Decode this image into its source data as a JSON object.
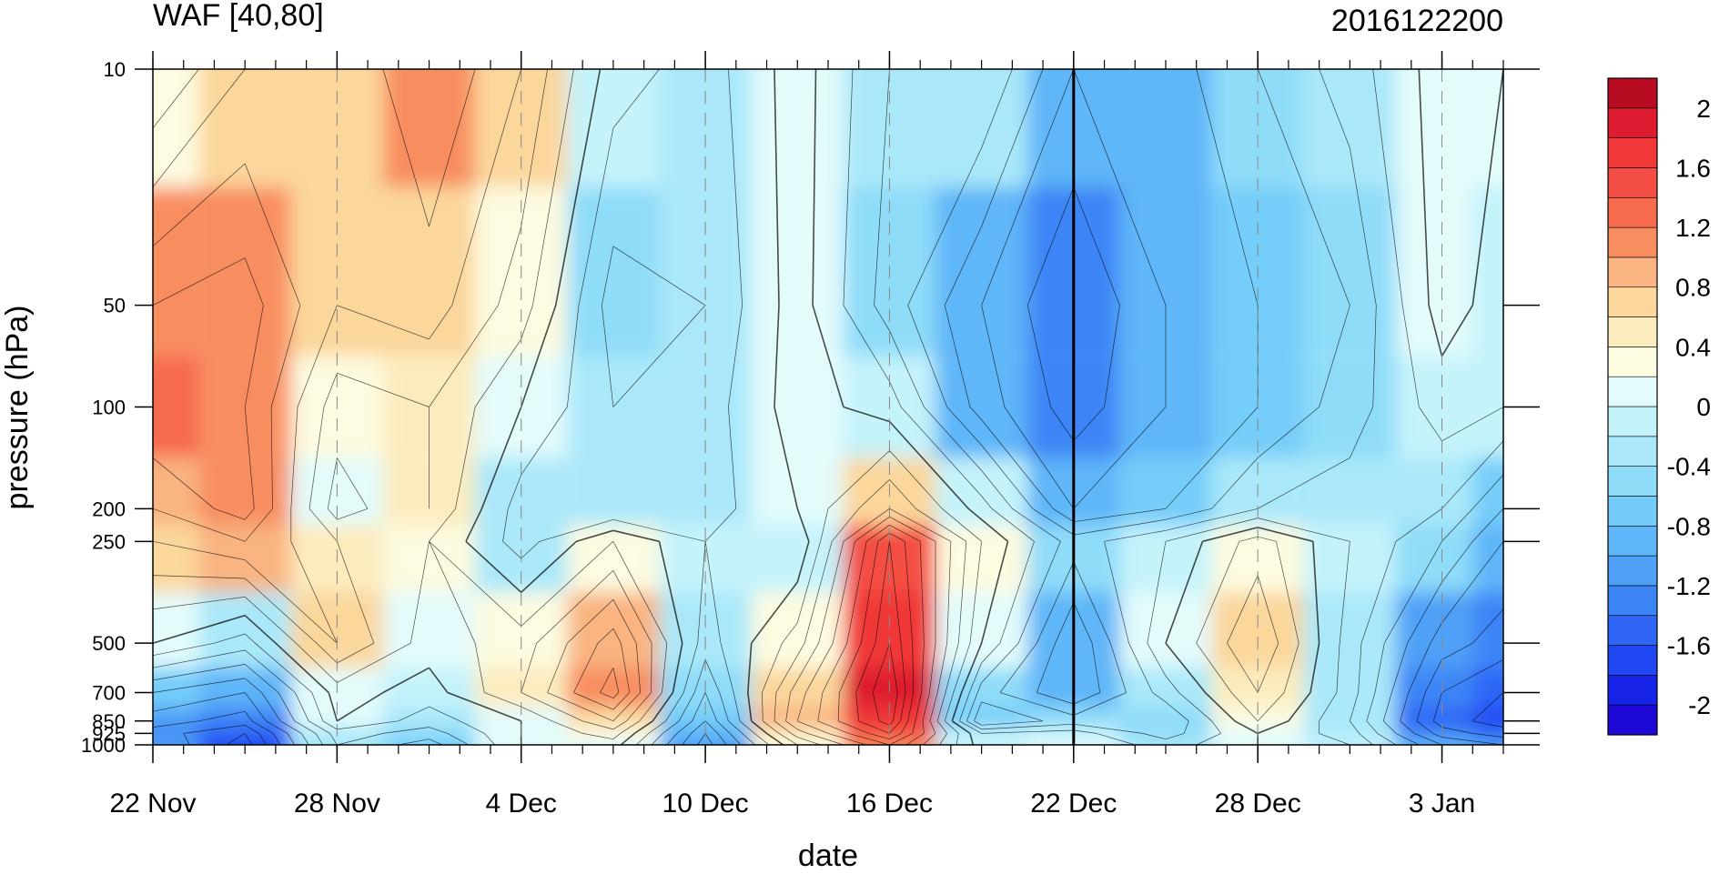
{
  "chart_data": {
    "type": "heatmap",
    "title_left": "WAF [40,80]",
    "title_right": "2016122200",
    "xlabel": "date",
    "ylabel": "pressure (hPa)",
    "x_start": "2016-11-22",
    "x_end": "2017-01-05",
    "x_ticks": [
      {
        "date": "2016-11-22",
        "label": "22 Nov"
      },
      {
        "date": "2016-11-28",
        "label": "28 Nov"
      },
      {
        "date": "2016-12-04",
        "label": "4 Dec"
      },
      {
        "date": "2016-12-10",
        "label": "10 Dec"
      },
      {
        "date": "2016-12-16",
        "label": "16 Dec"
      },
      {
        "date": "2016-12-22",
        "label": "22 Dec"
      },
      {
        "date": "2016-12-28",
        "label": "28 Dec"
      },
      {
        "date": "2017-01-03",
        "label": "3 Jan"
      }
    ],
    "y_scale": "log",
    "y_range": [
      1000,
      10
    ],
    "y_ticks": [
      {
        "value": 10,
        "label": "10"
      },
      {
        "value": 50,
        "label": "50"
      },
      {
        "value": 100,
        "label": "100"
      },
      {
        "value": 200,
        "label": "200"
      },
      {
        "value": 250,
        "label": "250"
      },
      {
        "value": 500,
        "label": "500"
      },
      {
        "value": 700,
        "label": "700"
      },
      {
        "value": 850,
        "label": "850"
      },
      {
        "value": 925,
        "label": "925"
      },
      {
        "value": 1000,
        "label": "1000"
      }
    ],
    "marker_date": "2016-12-22",
    "dates": [
      "2016-11-22",
      "2016-11-25",
      "2016-11-28",
      "2016-12-01",
      "2016-12-04",
      "2016-12-07",
      "2016-12-10",
      "2016-12-13",
      "2016-12-16",
      "2016-12-19",
      "2016-12-22",
      "2016-12-25",
      "2016-12-28",
      "2016-12-31",
      "2017-01-03",
      "2017-01-05"
    ],
    "levels": [
      10,
      50,
      100,
      200,
      250,
      500,
      700,
      850,
      925,
      1000
    ],
    "values": [
      [
        0.2,
        0.6,
        0.6,
        1.0,
        0.6,
        -0.1,
        -0.3,
        0.1,
        -0.4,
        -0.4,
        -1.0,
        -0.9,
        -0.6,
        -0.3,
        0.1,
        0.0
      ],
      [
        1.0,
        1.1,
        0.6,
        0.7,
        0.3,
        -0.5,
        -0.4,
        0.1,
        -0.5,
        -1.0,
        -1.4,
        -1.0,
        -0.8,
        -0.6,
        0.1,
        -0.1
      ],
      [
        1.2,
        1.0,
        0.3,
        0.4,
        0.0,
        -0.4,
        -0.3,
        0.1,
        -0.1,
        -0.9,
        -1.3,
        -1.0,
        -0.8,
        -0.5,
        -0.1,
        -0.2
      ],
      [
        0.8,
        1.1,
        0.1,
        0.4,
        -0.3,
        -0.4,
        -0.3,
        0.0,
        0.6,
        -0.1,
        -1.0,
        -0.8,
        -0.4,
        -0.3,
        -0.4,
        -0.8
      ],
      [
        0.6,
        0.8,
        0.4,
        0.2,
        -0.3,
        0.2,
        -0.2,
        -0.2,
        1.4,
        0.2,
        -0.5,
        -0.2,
        0.3,
        -0.2,
        -0.6,
        -1.0
      ],
      [
        0.0,
        -0.3,
        0.6,
        0.1,
        0.3,
        0.9,
        -0.3,
        0.3,
        1.6,
        0.0,
        -1.0,
        0.0,
        0.6,
        -0.3,
        -1.1,
        -1.3
      ],
      [
        -0.8,
        -1.0,
        0.1,
        -0.1,
        0.4,
        1.1,
        -0.6,
        0.7,
        1.8,
        -0.5,
        -1.0,
        -0.3,
        0.4,
        -0.3,
        -1.4,
        -1.6
      ],
      [
        -1.1,
        -1.3,
        0.0,
        -0.3,
        0.0,
        0.6,
        -0.8,
        0.8,
        1.7,
        -0.8,
        -0.5,
        -0.6,
        0.2,
        -0.4,
        -1.5,
        -1.7
      ],
      [
        -1.3,
        -1.6,
        -0.3,
        -0.5,
        0.0,
        0.3,
        -1.0,
        0.5,
        1.4,
        -0.2,
        -0.1,
        -0.5,
        0.0,
        -0.3,
        -1.3,
        -1.5
      ],
      [
        -1.2,
        -1.7,
        -0.4,
        -0.7,
        0.0,
        0.1,
        -1.1,
        0.2,
        1.0,
        -0.1,
        0.0,
        -0.3,
        0.0,
        -0.2,
        -1.0,
        -1.2
      ]
    ],
    "color_levels": [
      -2.2,
      -2.0,
      -1.8,
      -1.6,
      -1.4,
      -1.2,
      -1.0,
      -0.8,
      -0.6,
      -0.4,
      -0.2,
      0.0,
      0.2,
      0.4,
      0.6,
      0.8,
      1.0,
      1.2,
      1.4,
      1.6,
      1.8,
      2.0,
      2.2
    ],
    "colors": [
      "#1e08d6",
      "#1523e6",
      "#2048f2",
      "#2f66f5",
      "#3c85f6",
      "#4fa0f7",
      "#5fb6f8",
      "#74cdf9",
      "#8fdcf9",
      "#aae8f9",
      "#c5f3fa",
      "#e3fbfb",
      "#fdfbe0",
      "#fcecbd",
      "#fbd79c",
      "#f9b481",
      "#f88e60",
      "#f66b4d",
      "#f44d43",
      "#f13939",
      "#dd1d2f",
      "#b80c23"
    ],
    "colorbar_labels": [
      "2",
      "1.6",
      "1.2",
      "0.8",
      "0.4",
      "0",
      "-0.4",
      "-0.8",
      "-1.2",
      "-1.6",
      "-2"
    ],
    "colorbar_label_values": [
      2.0,
      1.6,
      1.2,
      0.8,
      0.4,
      0.0,
      -0.4,
      -0.8,
      -1.2,
      -1.6,
      -2.0
    ]
  }
}
